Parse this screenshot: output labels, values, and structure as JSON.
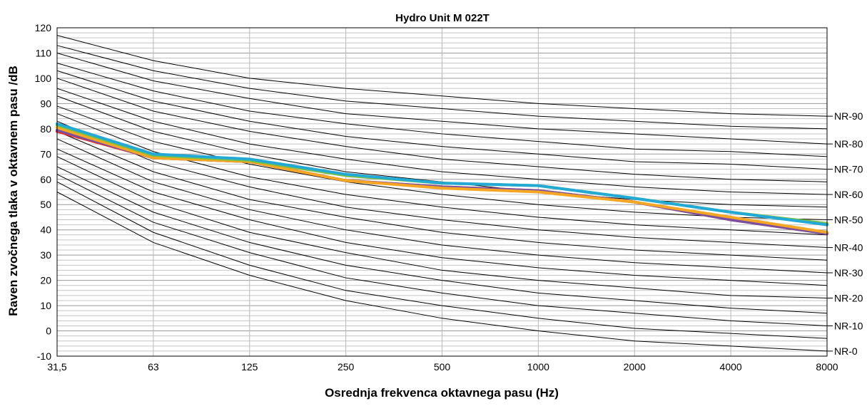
{
  "chart_data": {
    "type": "line",
    "title": "Hydro Unit M 022T",
    "xlabel": "Osrednja frekvenca oktavnega pasu (Hz)",
    "ylabel": "Raven zvočnega tlaka v oktavnem pasu /dB",
    "categories": [
      "31,5",
      "63",
      "125",
      "250",
      "500",
      "1000",
      "2000",
      "4000",
      "8000"
    ],
    "ylim": [
      -10,
      120
    ],
    "y_ticks": [
      -10,
      0,
      10,
      20,
      30,
      40,
      50,
      60,
      70,
      80,
      90,
      100,
      110,
      120
    ],
    "grid": true,
    "nr_curves": [
      {
        "label": "NR-0",
        "values": [
          55,
          35,
          22,
          12,
          5,
          0,
          -4,
          -6,
          -8
        ]
      },
      {
        "label": "",
        "values": [
          59,
          39,
          26,
          16,
          10,
          5,
          1,
          -1,
          -3
        ]
      },
      {
        "label": "NR-10",
        "values": [
          62,
          43,
          31,
          21,
          15,
          10,
          7,
          4,
          2
        ]
      },
      {
        "label": "",
        "values": [
          65,
          47,
          35,
          26,
          20,
          15,
          12,
          9,
          7
        ]
      },
      {
        "label": "NR-20",
        "values": [
          69,
          51,
          39,
          31,
          24,
          20,
          17,
          14,
          13
        ]
      },
      {
        "label": "",
        "values": [
          72,
          55,
          44,
          35,
          29,
          25,
          22,
          20,
          18
        ]
      },
      {
        "label": "NR-30",
        "values": [
          76,
          59,
          48,
          40,
          34,
          30,
          27,
          25,
          23
        ]
      },
      {
        "label": "",
        "values": [
          79,
          63,
          52,
          45,
          39,
          35,
          32,
          30,
          28
        ]
      },
      {
        "label": "NR-40",
        "values": [
          83,
          67,
          57,
          49,
          44,
          40,
          37,
          35,
          33
        ]
      },
      {
        "label": "",
        "values": [
          86,
          71,
          61,
          54,
          49,
          45,
          42,
          40,
          38
        ]
      },
      {
        "label": "NR-50",
        "values": [
          89,
          75,
          66,
          59,
          54,
          50,
          47,
          45,
          44
        ]
      },
      {
        "label": "",
        "values": [
          93,
          79,
          70,
          63,
          59,
          55,
          52,
          50,
          49
        ]
      },
      {
        "label": "NR-60",
        "values": [
          96,
          83,
          74,
          68,
          63,
          60,
          57,
          55,
          54
        ]
      },
      {
        "label": "",
        "values": [
          100,
          87,
          79,
          73,
          68,
          65,
          62,
          60,
          59
        ]
      },
      {
        "label": "NR-70",
        "values": [
          103,
          91,
          83,
          77,
          73,
          70,
          67,
          66,
          64
        ]
      },
      {
        "label": "",
        "values": [
          106,
          95,
          87,
          82,
          78,
          75,
          72,
          71,
          69
        ]
      },
      {
        "label": "NR-80",
        "values": [
          110,
          99,
          92,
          86,
          83,
          80,
          78,
          76,
          74
        ]
      },
      {
        "label": "",
        "values": [
          113,
          103,
          96,
          91,
          88,
          85,
          83,
          81,
          80
        ]
      },
      {
        "label": "NR-90",
        "values": [
          117,
          107,
          100,
          96,
          93,
          90,
          88,
          86,
          85
        ]
      }
    ],
    "series": [
      {
        "color": "#e8312f",
        "values": [
          79,
          68.5,
          67,
          59.5,
          57,
          55.5,
          51,
          44,
          38.5
        ]
      },
      {
        "color": "#7a4fa0",
        "values": [
          79.5,
          68.5,
          67,
          59.5,
          57,
          55.5,
          51,
          44,
          38.5
        ]
      },
      {
        "color": "#f5a623",
        "values": [
          80.5,
          68.5,
          67,
          59.5,
          56.5,
          55,
          51,
          45,
          39
        ]
      },
      {
        "color": "#7bc143",
        "values": [
          81.5,
          69.5,
          67.5,
          61.5,
          58.5,
          57.5,
          52.5,
          47,
          42.5
        ]
      },
      {
        "color": "#23a9d6",
        "values": [
          82,
          70,
          68,
          62,
          58.5,
          57.5,
          52.5,
          47,
          42
        ]
      }
    ]
  }
}
